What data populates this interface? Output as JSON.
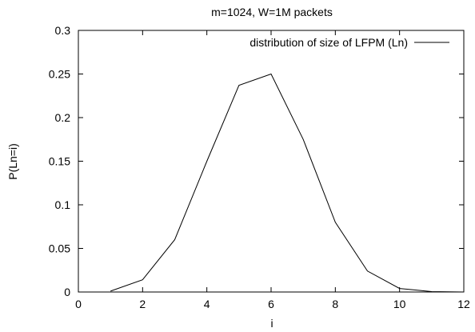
{
  "chart_data": {
    "type": "line",
    "title": "m=1024, W=1M packets",
    "xlabel": "i",
    "ylabel": "P(Ln=i)",
    "xlim": [
      0,
      12
    ],
    "ylim": [
      0,
      0.3
    ],
    "x_ticks": [
      "0",
      "2",
      "4",
      "6",
      "8",
      "10",
      "12"
    ],
    "y_ticks": [
      "0",
      "0.05",
      "0.1",
      "0.15",
      "0.2",
      "0.25",
      "0.3"
    ],
    "grid": false,
    "legend_position": "top-right",
    "series": [
      {
        "name": "distribution of size of LFPM (Ln)",
        "color": "#000000",
        "x": [
          1,
          2,
          3,
          4,
          5,
          6,
          7,
          8,
          9,
          10,
          11,
          12
        ],
        "y": [
          0.001,
          0.014,
          0.06,
          0.15,
          0.237,
          0.25,
          0.175,
          0.08,
          0.024,
          0.004,
          0.0005,
          0.0
        ]
      }
    ]
  }
}
